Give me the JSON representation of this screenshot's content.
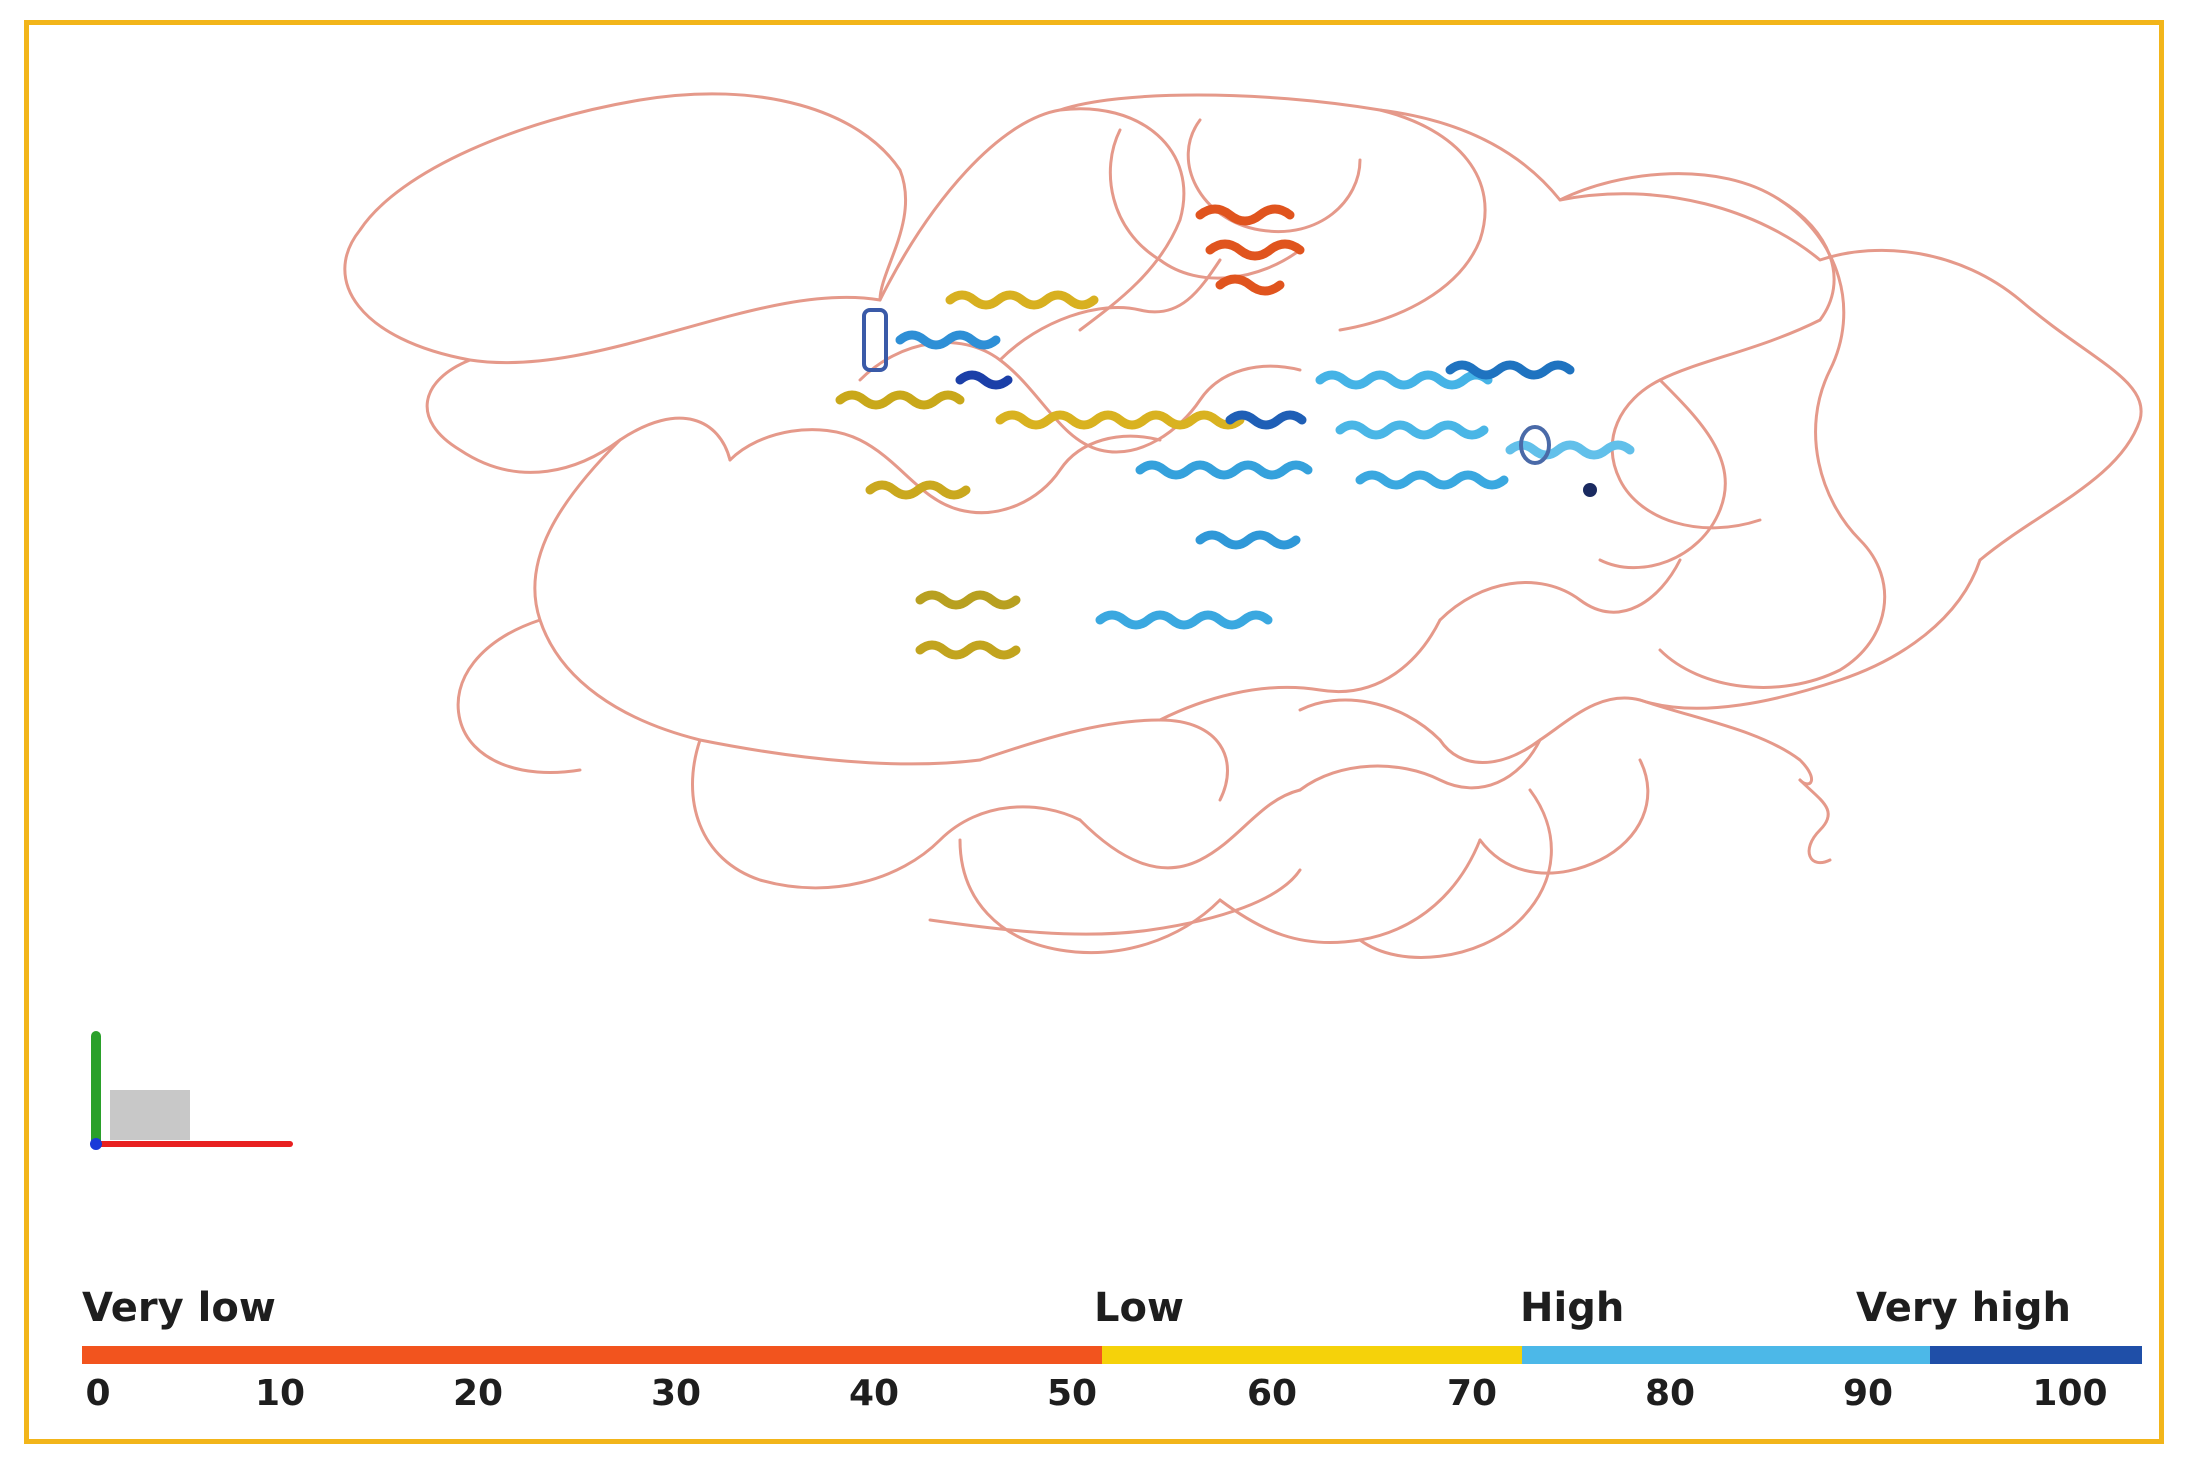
{
  "legend": {
    "categories": [
      {
        "label": "Very low",
        "color": "#f2541e"
      },
      {
        "label": "Low",
        "color": "#f5d20a"
      },
      {
        "label": "High",
        "color": "#4cb8e8"
      },
      {
        "label": "Very high",
        "color": "#1f4fa8"
      }
    ],
    "scale_ticks": [
      "0",
      "10",
      "20",
      "30",
      "40",
      "50",
      "60",
      "70",
      "80",
      "90",
      "100"
    ]
  },
  "colors": {
    "frame_border": "#f2b51a",
    "coil_trace": "#e5998a",
    "axis_x": "#e82020",
    "axis_y": "#2aa02a",
    "axis_z": "#1a3ad8"
  },
  "icons": [
    "axes-orientation-icon"
  ]
}
